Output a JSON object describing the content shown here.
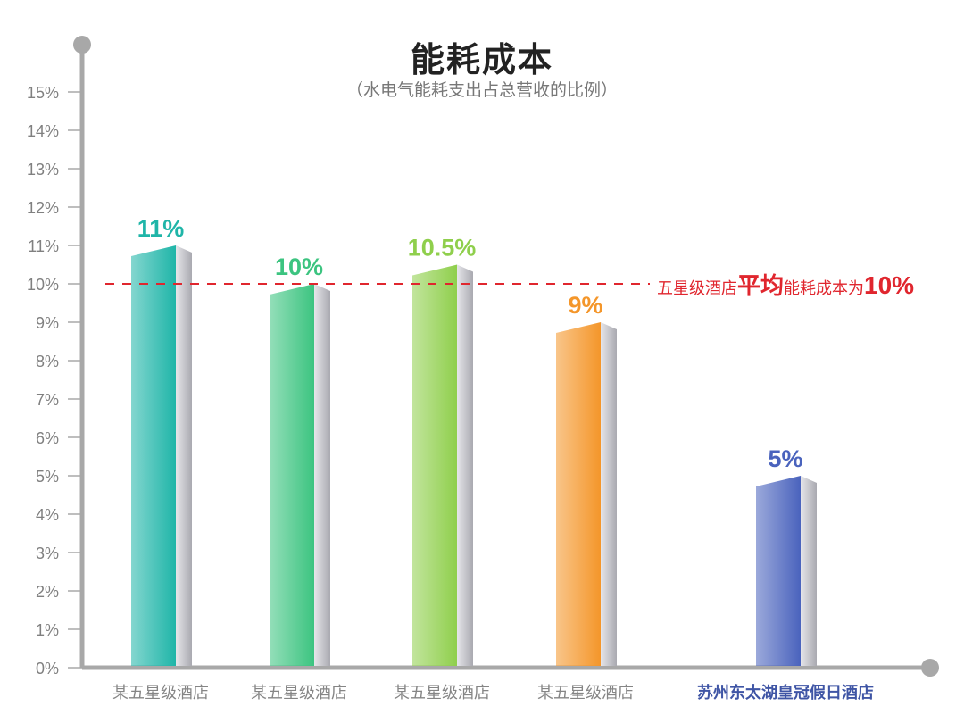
{
  "header": {
    "title": "能耗成本",
    "subtitle": "（水电气能耗支出占总营收的比例）"
  },
  "average_note": {
    "prefix": "五星级酒店",
    "emphasis": "平均",
    "middle": "能耗成本为",
    "value": "10%",
    "color": "#e0262e"
  },
  "axis": {
    "y_ticks": [
      "0%",
      "1%",
      "2%",
      "3%",
      "4%",
      "5%",
      "6%",
      "7%",
      "8%",
      "9%",
      "10%",
      "11%",
      "12%",
      "13%",
      "14%",
      "15%"
    ],
    "axis_color": "#a8a8a8",
    "tick_label_color": "#808080"
  },
  "colors": {
    "bar1": "#1fb5a8",
    "bar2": "#3cc480",
    "bar3": "#8fcf4c",
    "bar4": "#f4962a",
    "bar5": "#4a63bd",
    "side": "#c4c4c8",
    "reference_line": "#e0262e",
    "highlight_label": "#3f55a5"
  },
  "chart_data": {
    "type": "bar",
    "title": "能耗成本",
    "subtitle": "（水电气能耗支出占总营收的比例）",
    "xlabel": "",
    "ylabel": "",
    "categories": [
      "某五星级酒店",
      "某五星级酒店",
      "某五星级酒店",
      "某五星级酒店",
      "苏州东太湖皇冠假日酒店"
    ],
    "values": [
      11,
      10,
      10.5,
      9,
      5
    ],
    "data_labels": [
      "11%",
      "10%",
      "10.5%",
      "9%",
      "5%"
    ],
    "unit": "%",
    "ylim": [
      0,
      15
    ],
    "y_tick_step": 1,
    "grid": false,
    "legend": null,
    "reference_line": {
      "value": 10,
      "style": "dashed",
      "label": "五星级酒店平均能耗成本为10%"
    },
    "highlighted_category": "苏州东太湖皇冠假日酒店"
  }
}
